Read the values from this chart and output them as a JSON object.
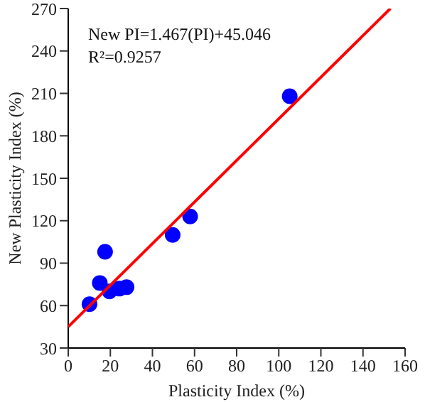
{
  "chart_data": {
    "type": "scatter",
    "xlabel": "Plasticity Index (%)",
    "ylabel": "New Plasticity Index (%)",
    "annotations": [
      "New PI=1.467(PI)+45.046",
      "R²=0.9257"
    ],
    "xlim": [
      0,
      160
    ],
    "xticks": [
      0,
      20,
      40,
      60,
      80,
      100,
      120,
      140,
      160
    ],
    "ylim": [
      30,
      270
    ],
    "yticks": [
      30,
      60,
      90,
      120,
      150,
      180,
      210,
      240,
      270
    ],
    "marker": "circle",
    "series": [
      {
        "color": "#0000ff",
        "x": [
          10.1,
          15,
          17.5,
          19.6,
          24.3,
          27.7,
          49.6,
          57.9,
          105.2
        ],
        "values": [
          61,
          76,
          98,
          70,
          72,
          73,
          110,
          123,
          208
        ]
      },
      {
        "type": "line",
        "color": "#ff0000",
        "line_style": "solid",
        "marker": "none",
        "x": [
          0,
          153
        ],
        "values": [
          45,
          270
        ]
      }
    ]
  }
}
